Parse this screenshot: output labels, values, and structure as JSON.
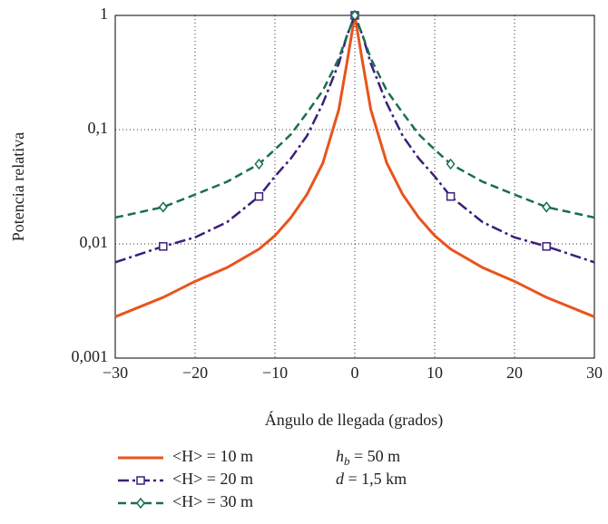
{
  "chart_data": {
    "type": "line",
    "xlabel": "Ángulo de llegada (grados)",
    "ylabel": "Potencia relativa",
    "log_y": true,
    "grid": true,
    "xlim": [
      -30,
      30
    ],
    "ylim": [
      0.001,
      1
    ],
    "xticks": [
      {
        "value": -30,
        "label": "−30"
      },
      {
        "value": -20,
        "label": "−20"
      },
      {
        "value": -10,
        "label": "−10"
      },
      0,
      10,
      20,
      30
    ],
    "yticks": [
      {
        "value": 0.001,
        "label": "0,001"
      },
      {
        "value": 0.01,
        "label": "0,01"
      },
      {
        "value": 0.1,
        "label": "0,1"
      },
      1
    ],
    "x": [
      -30,
      -24,
      -20,
      -16,
      -12,
      -10,
      -8,
      -6,
      -4,
      -2,
      -1,
      0,
      1,
      2,
      4,
      6,
      8,
      10,
      12,
      16,
      20,
      24,
      30
    ],
    "series": [
      {
        "name": "<H> = 10 m",
        "color": "#e8541e",
        "style": "solid",
        "marker": "none",
        "values": [
          0.0023,
          0.0034,
          0.0047,
          0.0062,
          0.009,
          0.0118,
          0.017,
          0.027,
          0.051,
          0.15,
          0.38,
          1,
          0.38,
          0.15,
          0.051,
          0.027,
          0.017,
          0.0118,
          0.009,
          0.0062,
          0.0047,
          0.0034,
          0.0023
        ]
      },
      {
        "name": "<H> = 20 m",
        "color": "#3b1f7a",
        "style": "dashdot",
        "marker": "square",
        "values": [
          0.0069,
          0.0095,
          0.0114,
          0.0155,
          0.026,
          0.039,
          0.056,
          0.088,
          0.17,
          0.38,
          0.66,
          1,
          0.66,
          0.38,
          0.17,
          0.088,
          0.056,
          0.039,
          0.026,
          0.0155,
          0.0114,
          0.0095,
          0.0069
        ]
      },
      {
        "name": "<H> = 30 m",
        "color": "#1a6e4f",
        "style": "dashed",
        "marker": "diamond",
        "values": [
          0.017,
          0.021,
          0.027,
          0.035,
          0.05,
          0.067,
          0.091,
          0.14,
          0.22,
          0.42,
          0.66,
          1,
          0.66,
          0.42,
          0.22,
          0.14,
          0.091,
          0.067,
          0.05,
          0.035,
          0.027,
          0.021,
          0.017
        ]
      }
    ],
    "annotations": [
      {
        "symbol": "h",
        "subscript": "b",
        "text": " = 50 m"
      },
      {
        "symbol": "d",
        "text": " = 1,5 km"
      }
    ]
  }
}
